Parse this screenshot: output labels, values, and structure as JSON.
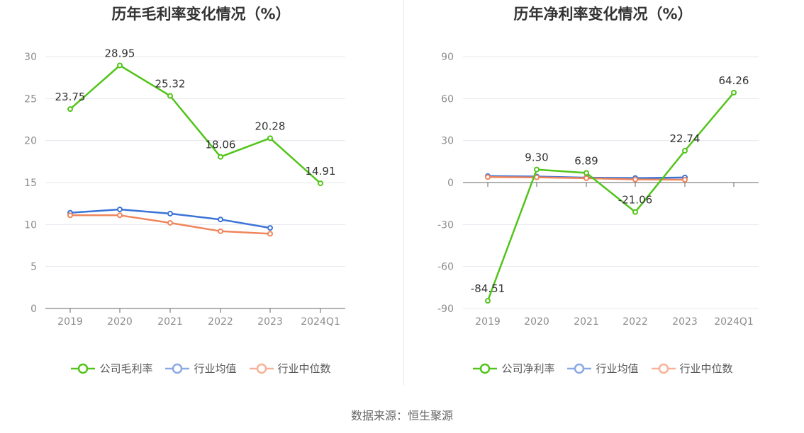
{
  "chart_data": [
    {
      "type": "line",
      "title": "历年毛利率变化情况（%）",
      "categories": [
        "2019",
        "2020",
        "2021",
        "2022",
        "2023",
        "2024Q1"
      ],
      "ylim": [
        0,
        30
      ],
      "yticks": [
        0,
        5,
        10,
        15,
        20,
        25,
        30
      ],
      "series": [
        {
          "name": "公司毛利率",
          "color": "#52c41a",
          "values": [
            23.75,
            28.95,
            25.32,
            18.06,
            20.28,
            14.91
          ],
          "labels": [
            "23.75",
            "28.95",
            "25.32",
            "18.06",
            "20.28",
            "14.91"
          ]
        },
        {
          "name": "行业均值",
          "color": "#3b73d6",
          "legend_color": "#8aa9e6",
          "values": [
            11.4,
            11.8,
            11.3,
            10.6,
            9.6,
            null
          ]
        },
        {
          "name": "行业中位数",
          "color": "#f0855c",
          "legend_color": "#f5b399",
          "values": [
            11.1,
            11.1,
            10.2,
            9.2,
            8.9,
            null
          ]
        }
      ],
      "legend": "bottom"
    },
    {
      "type": "line",
      "title": "历年净利率变化情况（%）",
      "categories": [
        "2019",
        "2020",
        "2021",
        "2022",
        "2023",
        "2024Q1"
      ],
      "ylim": [
        -90,
        90
      ],
      "yticks": [
        -90,
        -60,
        -30,
        0,
        30,
        60,
        90
      ],
      "series": [
        {
          "name": "公司净利率",
          "color": "#52c41a",
          "values": [
            -84.51,
            9.3,
            6.89,
            -21.06,
            22.74,
            64.26
          ],
          "labels": [
            "-84.51",
            "9.30",
            "6.89",
            "-21.06",
            "22.74",
            "64.26"
          ]
        },
        {
          "name": "行业均值",
          "color": "#3b73d6",
          "legend_color": "#8aa9e6",
          "values": [
            4.6,
            4.3,
            3.5,
            3.2,
            3.6,
            null
          ]
        },
        {
          "name": "行业中位数",
          "color": "#f0855c",
          "legend_color": "#f5b399",
          "values": [
            3.9,
            3.7,
            3.1,
            2.2,
            2.0,
            null
          ]
        }
      ],
      "legend": "bottom"
    }
  ],
  "source_text": "数据来源：恒生聚源"
}
